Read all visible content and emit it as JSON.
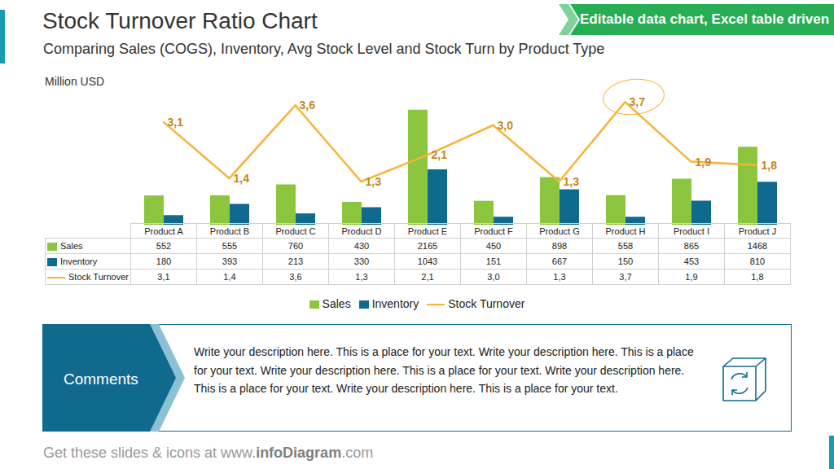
{
  "chart_data": {
    "type": "bar",
    "title": "Stock Turnover Ratio Chart",
    "subtitle": "Comparing Sales (COGS), Inventory, Avg Stock Level and Stock Turn by Product Type",
    "ylabel": "Million USD",
    "categories": [
      "Product A",
      "Product B",
      "Product C",
      "Product D",
      "Product E",
      "Product F",
      "Product G",
      "Product H",
      "Product I",
      "Product J"
    ],
    "series": [
      {
        "name": "Sales",
        "type": "bar",
        "color": "#8cc63e",
        "values": [
          552,
          555,
          760,
          430,
          2165,
          450,
          898,
          558,
          865,
          1468
        ]
      },
      {
        "name": "Inventory",
        "type": "bar",
        "color": "#0f6a8d",
        "values": [
          180,
          393,
          213,
          330,
          1043,
          151,
          667,
          150,
          453,
          810
        ]
      },
      {
        "name": "Stock Turnover",
        "type": "line",
        "color": "#f6b436",
        "axis": "y2",
        "marker": "none",
        "line_style": "solid",
        "data_labels": true,
        "values": [
          3.1,
          1.4,
          3.6,
          1.3,
          2.1,
          3.0,
          1.3,
          3.7,
          1.9,
          1.8
        ],
        "value_labels": [
          "3,1",
          "1,4",
          "3,6",
          "1,3",
          "2,1",
          "3,0",
          "1,3",
          "3,7",
          "1,9",
          "1,8"
        ]
      }
    ],
    "ylim": [
      0,
      2500
    ],
    "y2lim": [
      0,
      4
    ],
    "tick_labels": false,
    "grid": false,
    "legend": "bottom"
  },
  "badge": "Editable data chart, Excel table driven",
  "comments": {
    "label": "Comments",
    "text": "Write your description here. This is a place for your text. Write your description here. This is a place for your text. Write your description here. This is a place for your text. Write your description here. This is a place for your text. Write your description here. This is a place for your text."
  },
  "footer": {
    "text": "Get these slides & icons at www.infoDiagram.com",
    "bold": "infoDiagram"
  }
}
